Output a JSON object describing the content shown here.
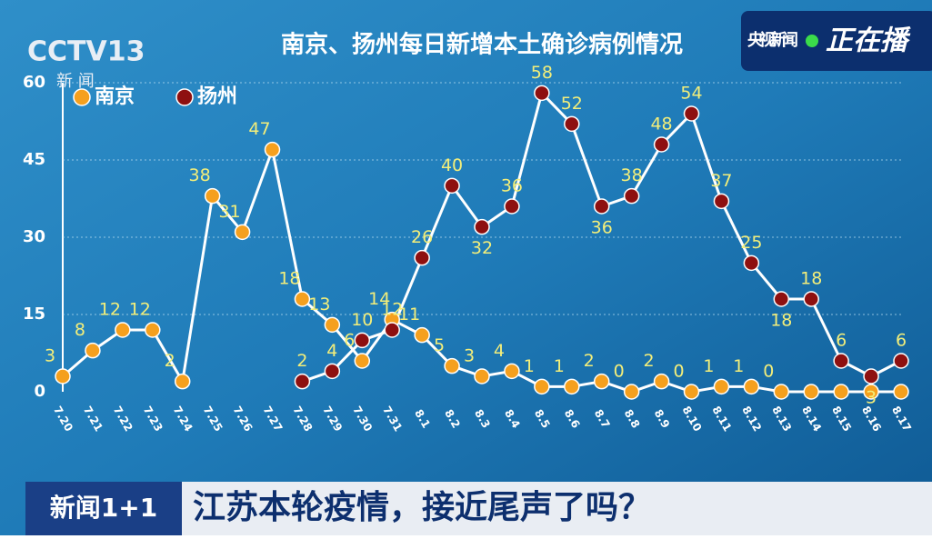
{
  "channel_logo": "CCTV13",
  "channel_sub": "新 闻",
  "corner_brand": "央视新闻",
  "corner_status": "正在播",
  "program": "新闻1+1",
  "headline": "江苏本轮疫情，接近尾声了吗？",
  "chart_data": {
    "type": "line",
    "title": "南京、扬州每日新增本土确诊病例情况",
    "categories": [
      "7.20",
      "7.21",
      "7.22",
      "7.23",
      "7.24",
      "7.25",
      "7.26",
      "7.27",
      "7.28",
      "7.29",
      "7.30",
      "7.31",
      "8.1",
      "8.2",
      "8.3",
      "8.4",
      "8.5",
      "8.6",
      "8.7",
      "8.8",
      "8.9",
      "8.10",
      "8.11",
      "8.12",
      "8.13",
      "8.14",
      "8.15",
      "8.16",
      "8.17"
    ],
    "series": [
      {
        "name": "南京",
        "color": "#f5a01e",
        "values": [
          3,
          8,
          12,
          12,
          2,
          38,
          31,
          47,
          18,
          13,
          6,
          14,
          11,
          5,
          3,
          4,
          1,
          1,
          2,
          0,
          2,
          0,
          1,
          1,
          0,
          0,
          0,
          0,
          0
        ],
        "value_labels": [
          "3",
          "8",
          "12",
          "12",
          "2",
          "38",
          "31",
          "47",
          "18",
          "13",
          "6",
          "14",
          "11",
          "5",
          "3",
          "4",
          "1",
          "1",
          "2",
          "0",
          "2",
          "0",
          "1",
          "1",
          "0",
          null,
          null,
          null,
          null
        ]
      },
      {
        "name": "扬州",
        "color": "#8e1010",
        "values": [
          null,
          null,
          null,
          null,
          null,
          null,
          null,
          null,
          2,
          4,
          10,
          12,
          26,
          40,
          32,
          36,
          58,
          52,
          36,
          38,
          48,
          54,
          37,
          25,
          18,
          18,
          6,
          3,
          6
        ]
      }
    ],
    "ylim": [
      0,
      60
    ],
    "yticks": [
      0,
      15,
      30,
      45,
      60
    ],
    "grid": true,
    "line_color": "#ffffff",
    "label_color": "#f3ee7a"
  }
}
